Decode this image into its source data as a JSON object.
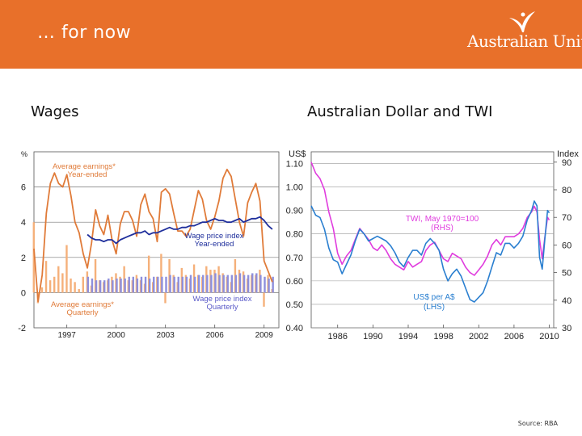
{
  "slide": {
    "title": "… for now",
    "logo_text": "Australian Unity",
    "source": "Source: RBA"
  },
  "colors": {
    "header": "#e8702a",
    "orange": "#e07b39",
    "orange_bar": "#f5b07a",
    "blue": "#1f2f9c",
    "blue_bar": "#8e8fdc",
    "magenta": "#e03cde",
    "blue_line": "#2a7fd0"
  },
  "chart_data": [
    {
      "panel_title": "Wages",
      "type": "line",
      "y_unit": "%",
      "ylim": [
        -2,
        8
      ],
      "yticks": [
        "-2",
        "0",
        "2",
        "4",
        "6"
      ],
      "xlim": [
        1995.0,
        2009.9
      ],
      "xticks": [
        "1997",
        "2000",
        "2003",
        "2006",
        "2009"
      ],
      "grid": true,
      "labels": [
        {
          "text": "Average earnings*",
          "color": "#e07b39",
          "row": 1
        },
        {
          "text": "Year-ended",
          "color": "#e07b39",
          "row": 2
        },
        {
          "text": "Wage price index",
          "color": "#1f2f9c",
          "row": 3
        },
        {
          "text": "Year-ended",
          "color": "#1f2f9c",
          "row": 4
        },
        {
          "text": "Average earnings*",
          "color": "#e07b39",
          "row": 5
        },
        {
          "text": "Quarterly",
          "color": "#e07b39",
          "row": 6
        },
        {
          "text": "Wage price index",
          "color": "#5a5ac8",
          "row": 7
        },
        {
          "text": "Quarterly",
          "color": "#5a5ac8",
          "row": 8
        }
      ],
      "series": [
        {
          "style": "line",
          "color": "#e07b39",
          "x": [
            1995.0,
            1995.25,
            1995.5,
            1995.75,
            1996.0,
            1996.25,
            1996.5,
            1996.75,
            1997.0,
            1997.25,
            1997.5,
            1997.75,
            1998.0,
            1998.25,
            1998.5,
            1998.75,
            1999.0,
            1999.25,
            1999.5,
            1999.75,
            2000.0,
            2000.25,
            2000.5,
            2000.75,
            2001.0,
            2001.25,
            2001.5,
            2001.75,
            2002.0,
            2002.25,
            2002.5,
            2002.75,
            2003.0,
            2003.25,
            2003.5,
            2003.75,
            2004.0,
            2004.25,
            2004.5,
            2004.75,
            2005.0,
            2005.25,
            2005.5,
            2005.75,
            2006.0,
            2006.25,
            2006.5,
            2006.75,
            2007.0,
            2007.25,
            2007.5,
            2007.75,
            2008.0,
            2008.25,
            2008.5,
            2008.75,
            2009.0,
            2009.25,
            2009.5
          ],
          "y": [
            2.5,
            -0.5,
            1.0,
            4.5,
            6.2,
            6.8,
            6.2,
            6.0,
            6.7,
            5.5,
            4.0,
            3.4,
            2.2,
            1.4,
            2.8,
            4.7,
            3.8,
            3.3,
            4.4,
            3.0,
            2.2,
            3.9,
            4.6,
            4.6,
            4.1,
            3.2,
            5.0,
            5.6,
            4.6,
            4.2,
            2.9,
            5.7,
            5.9,
            5.6,
            4.5,
            3.5,
            3.5,
            3.2,
            3.6,
            4.7,
            5.8,
            5.3,
            4.1,
            3.6,
            4.3,
            5.2,
            6.5,
            7.0,
            6.6,
            5.3,
            4.0,
            3.2,
            5.1,
            5.7,
            6.2,
            5.2,
            1.8,
            1.2,
            0.6
          ]
        },
        {
          "style": "line",
          "color": "#1f2f9c",
          "x": [
            1998.25,
            1998.5,
            1998.75,
            1999.0,
            1999.25,
            1999.5,
            1999.75,
            2000.0,
            2000.25,
            2000.5,
            2000.75,
            2001.0,
            2001.25,
            2001.5,
            2001.75,
            2002.0,
            2002.25,
            2002.5,
            2002.75,
            2003.0,
            2003.25,
            2003.5,
            2003.75,
            2004.0,
            2004.25,
            2004.5,
            2004.75,
            2005.0,
            2005.25,
            2005.5,
            2005.75,
            2006.0,
            2006.25,
            2006.5,
            2006.75,
            2007.0,
            2007.25,
            2007.5,
            2007.75,
            2008.0,
            2008.25,
            2008.5,
            2008.75,
            2009.0,
            2009.25,
            2009.5
          ],
          "y": [
            3.3,
            3.1,
            3.0,
            3.0,
            2.9,
            3.0,
            3.0,
            2.8,
            3.0,
            3.1,
            3.2,
            3.3,
            3.4,
            3.4,
            3.5,
            3.3,
            3.4,
            3.4,
            3.5,
            3.6,
            3.7,
            3.6,
            3.6,
            3.7,
            3.7,
            3.8,
            3.8,
            3.9,
            4.0,
            4.0,
            4.1,
            4.2,
            4.1,
            4.1,
            4.0,
            4.0,
            4.1,
            4.2,
            4.0,
            4.1,
            4.2,
            4.2,
            4.3,
            4.1,
            3.8,
            3.6
          ]
        },
        {
          "style": "bar",
          "color": "#f5b07a",
          "x": [
            1995.0,
            1995.25,
            1995.5,
            1995.75,
            1996.0,
            1996.25,
            1996.5,
            1996.75,
            1997.0,
            1997.25,
            1997.5,
            1997.75,
            1998.0,
            1998.25,
            1998.5,
            1998.75,
            1999.0,
            1999.25,
            1999.5,
            1999.75,
            2000.0,
            2000.25,
            2000.5,
            2000.75,
            2001.0,
            2001.25,
            2001.5,
            2001.75,
            2002.0,
            2002.25,
            2002.5,
            2002.75,
            2003.0,
            2003.25,
            2003.5,
            2003.75,
            2004.0,
            2004.25,
            2004.5,
            2004.75,
            2005.0,
            2005.25,
            2005.5,
            2005.75,
            2006.0,
            2006.25,
            2006.5,
            2006.75,
            2007.0,
            2007.25,
            2007.5,
            2007.75,
            2008.0,
            2008.25,
            2008.5,
            2008.75,
            2009.0,
            2009.25,
            2009.5
          ],
          "y": [
            4.0,
            -0.6,
            0.3,
            1.8,
            0.7,
            0.9,
            1.5,
            1.1,
            2.7,
            0.8,
            0.6,
            0.2,
            0.9,
            1.2,
            0.4,
            1.9,
            0.7,
            0.6,
            0.7,
            0.9,
            1.1,
            0.9,
            1.5,
            0.7,
            0.7,
            1.0,
            0.7,
            0.5,
            2.1,
            0.6,
            0.9,
            2.2,
            -0.6,
            1.9,
            1.0,
            0.6,
            1.4,
            1.0,
            0.8,
            1.6,
            1.0,
            0.9,
            1.5,
            1.3,
            1.3,
            1.5,
            1.1,
            0.9,
            0.6,
            1.9,
            1.3,
            1.2,
            0.8,
            1.0,
            1.0,
            1.3,
            -0.8,
            1.0,
            0.2
          ]
        },
        {
          "style": "bar",
          "color": "#8e8fdc",
          "x": [
            1998.25,
            1998.5,
            1998.75,
            1999.0,
            1999.25,
            1999.5,
            1999.75,
            2000.0,
            2000.25,
            2000.5,
            2000.75,
            2001.0,
            2001.25,
            2001.5,
            2001.75,
            2002.0,
            2002.25,
            2002.5,
            2002.75,
            2003.0,
            2003.25,
            2003.5,
            2003.75,
            2004.0,
            2004.25,
            2004.5,
            2004.75,
            2005.0,
            2005.25,
            2005.5,
            2005.75,
            2006.0,
            2006.25,
            2006.5,
            2006.75,
            2007.0,
            2007.25,
            2007.5,
            2007.75,
            2008.0,
            2008.25,
            2008.5,
            2008.75,
            2009.0,
            2009.25,
            2009.5
          ],
          "y": [
            0.9,
            0.8,
            0.7,
            0.7,
            0.7,
            0.8,
            0.7,
            0.8,
            0.8,
            0.8,
            0.9,
            0.9,
            0.8,
            0.9,
            0.9,
            0.8,
            0.9,
            0.9,
            0.9,
            0.9,
            1.0,
            0.9,
            0.9,
            0.9,
            0.9,
            1.0,
            0.9,
            1.0,
            1.0,
            1.0,
            1.0,
            1.1,
            1.0,
            1.0,
            1.0,
            1.0,
            1.0,
            1.1,
            1.0,
            1.0,
            1.1,
            1.1,
            1.0,
            0.9,
            0.8,
            0.9
          ]
        }
      ]
    },
    {
      "panel_title": "Australian Dollar and TWI",
      "type": "line",
      "lhs_unit": "US$",
      "rhs_unit": "Index",
      "ylim_lhs": [
        0.4,
        1.15
      ],
      "ylim_rhs": [
        30,
        93.75
      ],
      "yticks_lhs": [
        "0.40",
        "0.50",
        "0.60",
        "0.70",
        "0.80",
        "0.90",
        "1.00",
        "1.10"
      ],
      "yticks_rhs": [
        "30",
        "40",
        "50",
        "60",
        "70",
        "80",
        "90"
      ],
      "xlim": [
        1983.0,
        2010.5
      ],
      "xticks": [
        "1986",
        "1990",
        "1994",
        "1998",
        "2002",
        "2006",
        "2010"
      ],
      "grid": true,
      "labels": [
        {
          "text": "TWI, May 1970=100",
          "color": "#e03cde",
          "row": 1
        },
        {
          "text": "(RHS)",
          "color": "#e03cde",
          "row": 2
        },
        {
          "text": "US$ per A$",
          "color": "#2a7fd0",
          "row": 3
        },
        {
          "text": "(LHS)",
          "color": "#2a7fd0",
          "row": 4
        }
      ],
      "series": [
        {
          "axis": "rhs",
          "color": "#e03cde",
          "x": [
            1983.0,
            1983.5,
            1984.0,
            1984.5,
            1985.0,
            1985.5,
            1986.0,
            1986.5,
            1987.0,
            1987.5,
            1988.0,
            1988.5,
            1989.0,
            1989.5,
            1990.0,
            1990.5,
            1991.0,
            1991.5,
            1992.0,
            1992.5,
            1993.0,
            1993.5,
            1994.0,
            1994.5,
            1995.0,
            1995.5,
            1996.0,
            1996.5,
            1997.0,
            1997.5,
            1998.0,
            1998.5,
            1999.0,
            1999.5,
            2000.0,
            2000.5,
            2001.0,
            2001.5,
            2002.0,
            2002.5,
            2003.0,
            2003.5,
            2004.0,
            2004.5,
            2005.0,
            2005.5,
            2006.0,
            2006.5,
            2007.0,
            2007.5,
            2008.0,
            2008.3,
            2008.6,
            2008.9,
            2009.2,
            2009.5,
            2009.8,
            2010.0
          ],
          "y": [
            90,
            86,
            84,
            80,
            72,
            66,
            57,
            53,
            56,
            58,
            62,
            66,
            64,
            62,
            59,
            58,
            60,
            58,
            55,
            53,
            52,
            51,
            54,
            52,
            53,
            54,
            58,
            60,
            61,
            58,
            55,
            54,
            57,
            56,
            55,
            52,
            50,
            49,
            51,
            53,
            56,
            60,
            62,
            60,
            63,
            63,
            63,
            64,
            66,
            70,
            72,
            74,
            72,
            62,
            55,
            63,
            70,
            69
          ]
        },
        {
          "axis": "lhs",
          "color": "#2a7fd0",
          "x": [
            1983.0,
            1983.5,
            1984.0,
            1984.5,
            1985.0,
            1985.5,
            1986.0,
            1986.5,
            1987.0,
            1987.5,
            1988.0,
            1988.5,
            1989.0,
            1989.5,
            1990.0,
            1990.5,
            1991.0,
            1991.5,
            1992.0,
            1992.5,
            1993.0,
            1993.5,
            1994.0,
            1994.5,
            1995.0,
            1995.5,
            1996.0,
            1996.5,
            1997.0,
            1997.5,
            1998.0,
            1998.5,
            1999.0,
            1999.5,
            2000.0,
            2000.5,
            2001.0,
            2001.5,
            2002.0,
            2002.5,
            2003.0,
            2003.5,
            2004.0,
            2004.5,
            2005.0,
            2005.5,
            2006.0,
            2006.5,
            2007.0,
            2007.5,
            2008.0,
            2008.3,
            2008.6,
            2008.9,
            2009.2,
            2009.5,
            2009.8,
            2010.0
          ],
          "y": [
            0.92,
            0.88,
            0.87,
            0.82,
            0.74,
            0.69,
            0.68,
            0.63,
            0.67,
            0.71,
            0.77,
            0.82,
            0.8,
            0.77,
            0.78,
            0.79,
            0.78,
            0.77,
            0.75,
            0.72,
            0.68,
            0.66,
            0.7,
            0.73,
            0.73,
            0.71,
            0.76,
            0.78,
            0.76,
            0.73,
            0.65,
            0.6,
            0.63,
            0.65,
            0.62,
            0.57,
            0.52,
            0.51,
            0.53,
            0.55,
            0.6,
            0.66,
            0.72,
            0.71,
            0.76,
            0.76,
            0.74,
            0.76,
            0.79,
            0.86,
            0.9,
            0.94,
            0.92,
            0.7,
            0.65,
            0.78,
            0.9,
            0.89
          ]
        }
      ]
    }
  ]
}
